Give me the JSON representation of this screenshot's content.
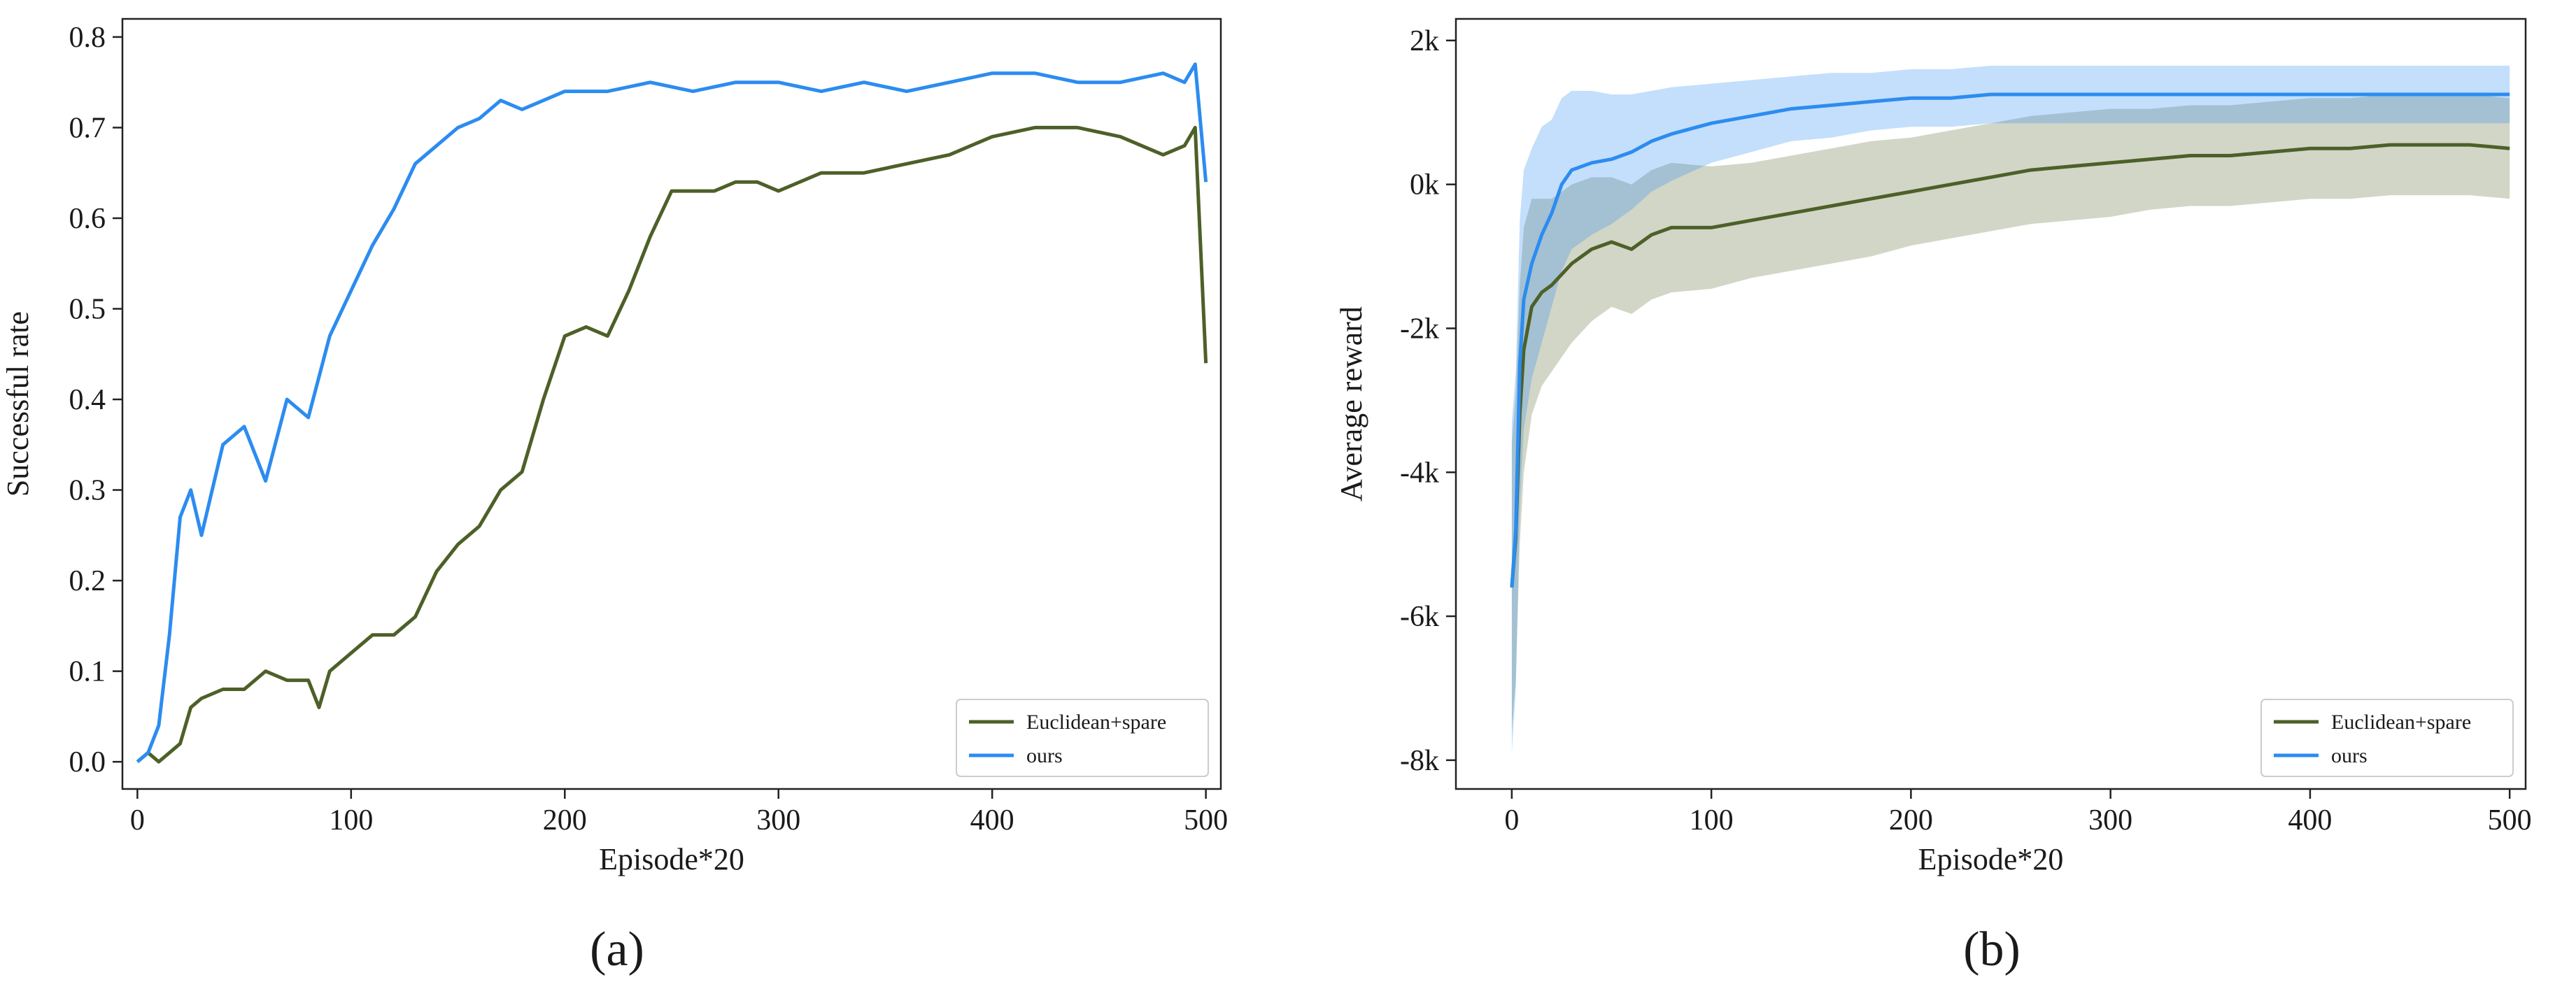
{
  "chart_data": [
    {
      "type": "line",
      "panel_label": "(a)",
      "xlabel": "Episode*20",
      "ylabel": "Successful rate",
      "xlim": [
        -7,
        507
      ],
      "ylim": [
        -0.03,
        0.82
      ],
      "xticks": [
        0,
        100,
        200,
        300,
        400,
        500
      ],
      "xtick_labels": [
        "0",
        "100",
        "200",
        "300",
        "400",
        "500"
      ],
      "yticks": [
        0.0,
        0.1,
        0.2,
        0.3,
        0.4,
        0.5,
        0.6,
        0.7,
        0.8
      ],
      "ytick_labels": [
        "0.0",
        "0.1",
        "0.2",
        "0.3",
        "0.4",
        "0.5",
        "0.6",
        "0.7",
        "0.8"
      ],
      "legend_position": "lower-right",
      "series": [
        {
          "name": "Euclidean+spare",
          "color": "#4d6028",
          "band": false,
          "x": [
            0,
            5,
            10,
            15,
            20,
            25,
            30,
            40,
            50,
            60,
            70,
            80,
            85,
            90,
            100,
            110,
            120,
            130,
            140,
            150,
            160,
            170,
            180,
            190,
            200,
            210,
            220,
            230,
            240,
            250,
            260,
            270,
            280,
            290,
            300,
            320,
            340,
            360,
            380,
            400,
            420,
            440,
            460,
            480,
            490,
            495,
            500
          ],
          "values": [
            0.0,
            0.01,
            0.0,
            0.01,
            0.02,
            0.06,
            0.07,
            0.08,
            0.08,
            0.1,
            0.09,
            0.09,
            0.06,
            0.1,
            0.12,
            0.14,
            0.14,
            0.16,
            0.21,
            0.24,
            0.26,
            0.3,
            0.32,
            0.4,
            0.47,
            0.48,
            0.47,
            0.52,
            0.58,
            0.63,
            0.63,
            0.63,
            0.64,
            0.64,
            0.63,
            0.65,
            0.65,
            0.66,
            0.67,
            0.69,
            0.7,
            0.7,
            0.69,
            0.67,
            0.68,
            0.7,
            0.44
          ]
        },
        {
          "name": "ours",
          "color": "#2c8cf0",
          "band": false,
          "x": [
            0,
            5,
            10,
            15,
            20,
            25,
            30,
            40,
            50,
            60,
            70,
            80,
            90,
            100,
            110,
            120,
            130,
            140,
            150,
            160,
            170,
            180,
            190,
            200,
            220,
            240,
            260,
            280,
            300,
            320,
            340,
            360,
            380,
            400,
            420,
            440,
            460,
            480,
            490,
            495,
            500
          ],
          "values": [
            0.0,
            0.01,
            0.04,
            0.14,
            0.27,
            0.3,
            0.25,
            0.35,
            0.37,
            0.31,
            0.4,
            0.38,
            0.47,
            0.52,
            0.57,
            0.61,
            0.66,
            0.68,
            0.7,
            0.71,
            0.73,
            0.72,
            0.73,
            0.74,
            0.74,
            0.75,
            0.74,
            0.75,
            0.75,
            0.74,
            0.75,
            0.74,
            0.75,
            0.76,
            0.76,
            0.75,
            0.75,
            0.76,
            0.75,
            0.77,
            0.64
          ]
        }
      ]
    },
    {
      "type": "line",
      "panel_label": "(b)",
      "xlabel": "Episode*20",
      "ylabel": "Average reward",
      "xlim": [
        -28,
        508
      ],
      "ylim": [
        -8400,
        2300
      ],
      "xticks": [
        0,
        100,
        200,
        300,
        400,
        500
      ],
      "xtick_labels": [
        "0",
        "100",
        "200",
        "300",
        "400",
        "500"
      ],
      "yticks": [
        -8000,
        -6000,
        -4000,
        -2000,
        0,
        2000
      ],
      "ytick_labels": [
        "-8k",
        "-6k",
        "-4k",
        "-2k",
        "0k",
        "2k"
      ],
      "legend_position": "lower-right",
      "series": [
        {
          "name": "Euclidean+spare",
          "color": "#4d6028",
          "band": true,
          "x": [
            0,
            2,
            4,
            6,
            10,
            15,
            20,
            30,
            40,
            50,
            60,
            70,
            80,
            100,
            120,
            140,
            160,
            180,
            200,
            220,
            240,
            260,
            280,
            300,
            320,
            340,
            360,
            380,
            400,
            420,
            440,
            460,
            480,
            500
          ],
          "values": [
            -5600,
            -4900,
            -3200,
            -2300,
            -1700,
            -1500,
            -1400,
            -1100,
            -900,
            -800,
            -900,
            -700,
            -600,
            -600,
            -500,
            -400,
            -300,
            -200,
            -100,
            0,
            100,
            200,
            250,
            300,
            350,
            400,
            400,
            450,
            500,
            500,
            550,
            550,
            550,
            500
          ],
          "spread": [
            2000,
            2000,
            1800,
            1700,
            1500,
            1300,
            1200,
            1100,
            1000,
            900,
            900,
            900,
            900,
            850,
            800,
            800,
            800,
            800,
            750,
            750,
            750,
            750,
            750,
            750,
            700,
            700,
            700,
            700,
            700,
            700,
            700,
            700,
            700,
            700
          ]
        },
        {
          "name": "ours",
          "color": "#2c8cf0",
          "band": true,
          "x": [
            0,
            2,
            4,
            6,
            10,
            15,
            20,
            25,
            30,
            40,
            50,
            60,
            70,
            80,
            100,
            120,
            140,
            160,
            180,
            200,
            220,
            240,
            260,
            280,
            300,
            320,
            340,
            360,
            380,
            400,
            420,
            440,
            460,
            480,
            500
          ],
          "values": [
            -5600,
            -4800,
            -2500,
            -1600,
            -1100,
            -700,
            -400,
            0,
            200,
            300,
            350,
            450,
            600,
            700,
            850,
            950,
            1050,
            1100,
            1150,
            1200,
            1200,
            1250,
            1250,
            1250,
            1250,
            1250,
            1250,
            1250,
            1250,
            1250,
            1250,
            1250,
            1250,
            1250,
            1250
          ],
          "spread": [
            2300,
            2200,
            2000,
            1800,
            1600,
            1500,
            1300,
            1200,
            1100,
            1000,
            900,
            800,
            700,
            650,
            550,
            500,
            450,
            450,
            400,
            400,
            400,
            400,
            400,
            400,
            400,
            400,
            400,
            400,
            400,
            400,
            400,
            400,
            400,
            400,
            400
          ]
        }
      ]
    }
  ]
}
